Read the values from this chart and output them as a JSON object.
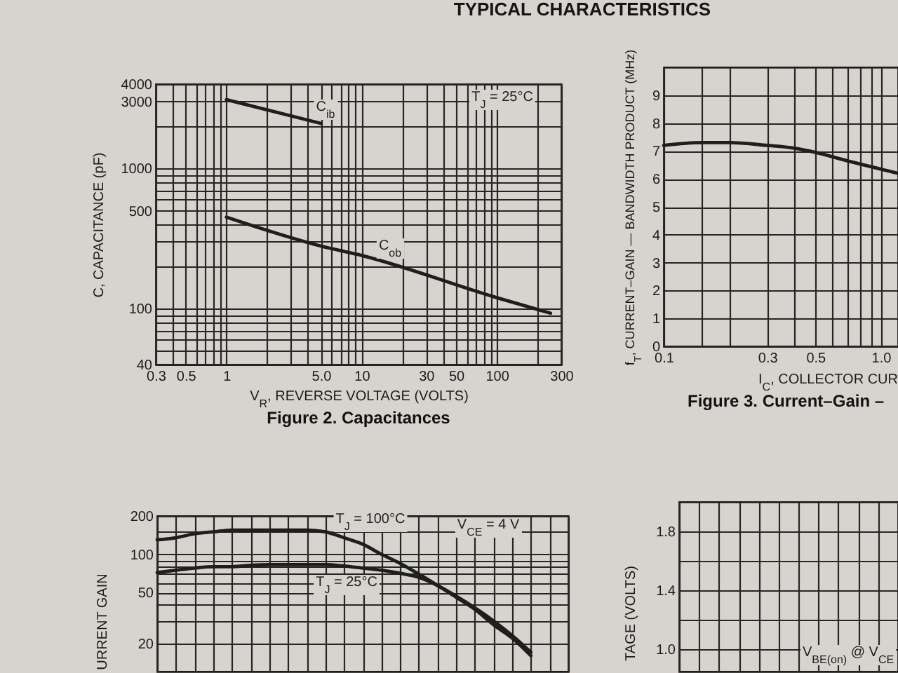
{
  "chart_data": [
    {
      "type": "line",
      "title": "Figure 2. Capacitances",
      "xlabel": "V$_{R}$, REVERSE VOLTAGE (VOLTS)",
      "ylabel": "C, CAPACITANCE (pF)",
      "annotations": [
        "T$_{J}$ = 25°C"
      ],
      "log": "xy",
      "xlim": [
        0.3,
        300
      ],
      "ylim": [
        40,
        4000
      ],
      "xticks": [
        0.3,
        {
          "value": 0.4,
          "label": null
        },
        0.5,
        {
          "value": 0.6,
          "label": null
        },
        {
          "value": 0.7,
          "label": null
        },
        {
          "value": 0.8,
          "label": null
        },
        {
          "value": 0.9,
          "label": null
        },
        1,
        {
          "value": 2,
          "label": null
        },
        {
          "value": 3,
          "label": null
        },
        {
          "value": 4,
          "label": null
        },
        {
          "value": 5,
          "label": "5.0"
        },
        {
          "value": 6,
          "label": null
        },
        {
          "value": 7,
          "label": null
        },
        {
          "value": 8,
          "label": null
        },
        {
          "value": 9,
          "label": null
        },
        10,
        {
          "value": 20,
          "label": null
        },
        30,
        {
          "value": 40,
          "label": null
        },
        50,
        {
          "value": 60,
          "label": null
        },
        {
          "value": 70,
          "label": null
        },
        {
          "value": 80,
          "label": null
        },
        {
          "value": 90,
          "label": null
        },
        100,
        {
          "value": 200,
          "label": null
        },
        300
      ],
      "yticks": [
        40,
        {
          "value": 50,
          "label": null
        },
        {
          "value": 60,
          "label": null
        },
        {
          "value": 70,
          "label": null
        },
        {
          "value": 80,
          "label": null
        },
        {
          "value": 90,
          "label": null
        },
        100,
        {
          "value": 200,
          "label": null
        },
        {
          "value": 300,
          "label": null
        },
        {
          "value": 400,
          "label": null
        },
        500,
        {
          "value": 600,
          "label": null
        },
        {
          "value": 700,
          "label": null
        },
        {
          "value": 800,
          "label": null
        },
        {
          "value": 900,
          "label": null
        },
        1000,
        {
          "value": 2000,
          "label": null
        },
        3000,
        4000
      ],
      "grid": true,
      "series": [
        {
          "name": "C$_{ib}$",
          "color": "#1e1e1e",
          "x": [
            1,
            5
          ],
          "values": [
            3100,
            2100
          ]
        },
        {
          "name": "C$_{ob}$",
          "color": "#1e1e1e",
          "x": [
            1,
            5,
            10,
            100,
            250
          ],
          "values": [
            450,
            280,
            240,
            120,
            93
          ]
        }
      ]
    },
    {
      "type": "line",
      "title": "Figure 3. Current–Gain –",
      "xlabel": "I$_{C}$, COLLECTOR CUR",
      "ylabel": "f$_{T}$, CURRENT–GAIN — BANDWIDTH PRODUCT (MHz)",
      "annotations": [
        "TYPICAL CHARACTERISTICS"
      ],
      "log": "x",
      "xlim": [
        0.1,
        1.2
      ],
      "ylim": [
        0,
        10
      ],
      "xticks": [
        0.1,
        {
          "value": 0.15,
          "label": null
        },
        {
          "value": 0.2,
          "label": null
        },
        0.3,
        {
          "value": 0.4,
          "label": null
        },
        0.5,
        {
          "value": 0.6,
          "label": null
        },
        {
          "value": 0.7,
          "label": null
        },
        {
          "value": 0.8,
          "label": null
        },
        {
          "value": 0.9,
          "label": null
        },
        {
          "value": 1,
          "label": "1.0"
        }
      ],
      "yticks": [
        0,
        1,
        2,
        3,
        4,
        5,
        6,
        7,
        8,
        9
      ],
      "grid": true,
      "series": [
        {
          "color": "#1e1e1e",
          "x": [
            0.1,
            0.15,
            0.2,
            0.3,
            0.4,
            0.5,
            0.7,
            1,
            1.2
          ],
          "values": [
            7.2,
            7.3,
            7.3,
            7.2,
            7.1,
            6.95,
            6.65,
            6.35,
            6.2
          ]
        }
      ]
    },
    {
      "type": "line",
      "ylabel": "URRENT GAIN",
      "annotations": [
        "V$_{CE}$ = 4 V"
      ],
      "log": "y",
      "ylim": [
        12,
        200
      ],
      "yticks": [
        20,
        {
          "value": 30,
          "label": null
        },
        {
          "value": 40,
          "label": null
        },
        50,
        {
          "value": 60,
          "label": null
        },
        {
          "value": 70,
          "label": null
        },
        {
          "value": 80,
          "label": null
        },
        {
          "value": 90,
          "label": null
        },
        100,
        {
          "value": 150,
          "label": null
        },
        200
      ],
      "grid": true,
      "categories": [
        null,
        null,
        null,
        null,
        null,
        null,
        null,
        null,
        null,
        null,
        null,
        null,
        null,
        null,
        null,
        null,
        null,
        null,
        null,
        null,
        null,
        null,
        null
      ],
      "series": [
        {
          "name": "T$_{J}$ = 100°C",
          "color": "#1e1e1e",
          "values": [
            130,
            135,
            145,
            150,
            155,
            155,
            155,
            155,
            155,
            150,
            135,
            120,
            100,
            85,
            70,
            57,
            46,
            37,
            28,
            22,
            16,
            null,
            null
          ]
        },
        {
          "name": "T$_{J}$ = 25°C",
          "color": "#1e1e1e",
          "values": [
            72,
            75,
            78,
            80,
            80,
            82,
            83,
            83,
            83,
            83,
            81,
            78,
            75,
            71,
            66,
            57,
            47,
            38,
            30,
            23,
            17,
            null,
            null
          ]
        }
      ]
    },
    {
      "type": "line",
      "ylabel": "TAGE (VOLTS)",
      "annotations": [
        "V$_{BE(on)}$ @ V$_{CE}$"
      ],
      "ylim": [
        0.85,
        2
      ],
      "yticks": [
        {
          "value": 1,
          "label": "1.0"
        },
        {
          "value": 1.2,
          "label": null
        },
        1.4,
        {
          "value": 1.6,
          "label": null
        },
        1.8
      ],
      "grid": true,
      "categories": [
        null,
        null,
        null,
        null,
        null,
        null,
        null,
        null,
        null,
        null,
        null,
        null
      ]
    }
  ]
}
